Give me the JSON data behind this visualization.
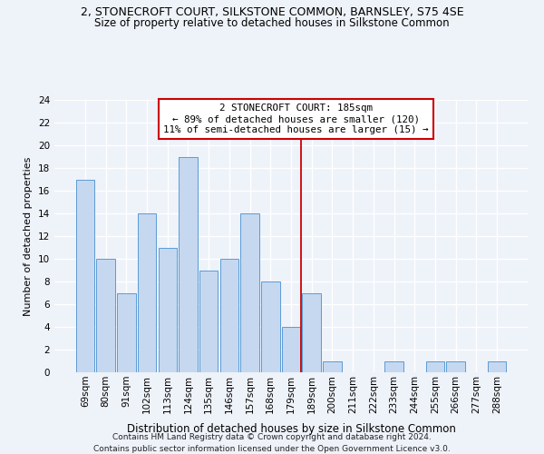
{
  "title": "2, STONECROFT COURT, SILKSTONE COMMON, BARNSLEY, S75 4SE",
  "subtitle": "Size of property relative to detached houses in Silkstone Common",
  "xlabel": "Distribution of detached houses by size in Silkstone Common",
  "ylabel": "Number of detached properties",
  "categories": [
    "69sqm",
    "80sqm",
    "91sqm",
    "102sqm",
    "113sqm",
    "124sqm",
    "135sqm",
    "146sqm",
    "157sqm",
    "168sqm",
    "179sqm",
    "189sqm",
    "200sqm",
    "211sqm",
    "222sqm",
    "233sqm",
    "244sqm",
    "255sqm",
    "266sqm",
    "277sqm",
    "288sqm"
  ],
  "values": [
    17,
    10,
    7,
    14,
    11,
    19,
    9,
    10,
    14,
    8,
    4,
    7,
    1,
    0,
    0,
    1,
    0,
    1,
    1,
    0,
    1
  ],
  "bar_color": "#c5d8f0",
  "bar_edge_color": "#5b9bd5",
  "vline_x": 10.5,
  "annotation_line1": "2 STONECROFT COURT: 185sqm",
  "annotation_line2": "← 89% of detached houses are smaller (120)",
  "annotation_line3": "11% of semi-detached houses are larger (15) →",
  "vline_color": "#cc0000",
  "annotation_box_edge_color": "#cc0000",
  "background_color": "#eef2f9",
  "grid_color": "#ffffff",
  "ylim": [
    0,
    24
  ],
  "yticks": [
    0,
    2,
    4,
    6,
    8,
    10,
    12,
    14,
    16,
    18,
    20,
    22,
    24
  ],
  "title_fontsize": 9.0,
  "subtitle_fontsize": 8.5,
  "ylabel_fontsize": 8.0,
  "xlabel_fontsize": 8.5,
  "tick_fontsize": 7.5,
  "annot_fontsize": 7.8,
  "footnote1": "Contains HM Land Registry data © Crown copyright and database right 2024.",
  "footnote2": "Contains public sector information licensed under the Open Government Licence v3.0.",
  "footnote_fontsize": 6.5
}
